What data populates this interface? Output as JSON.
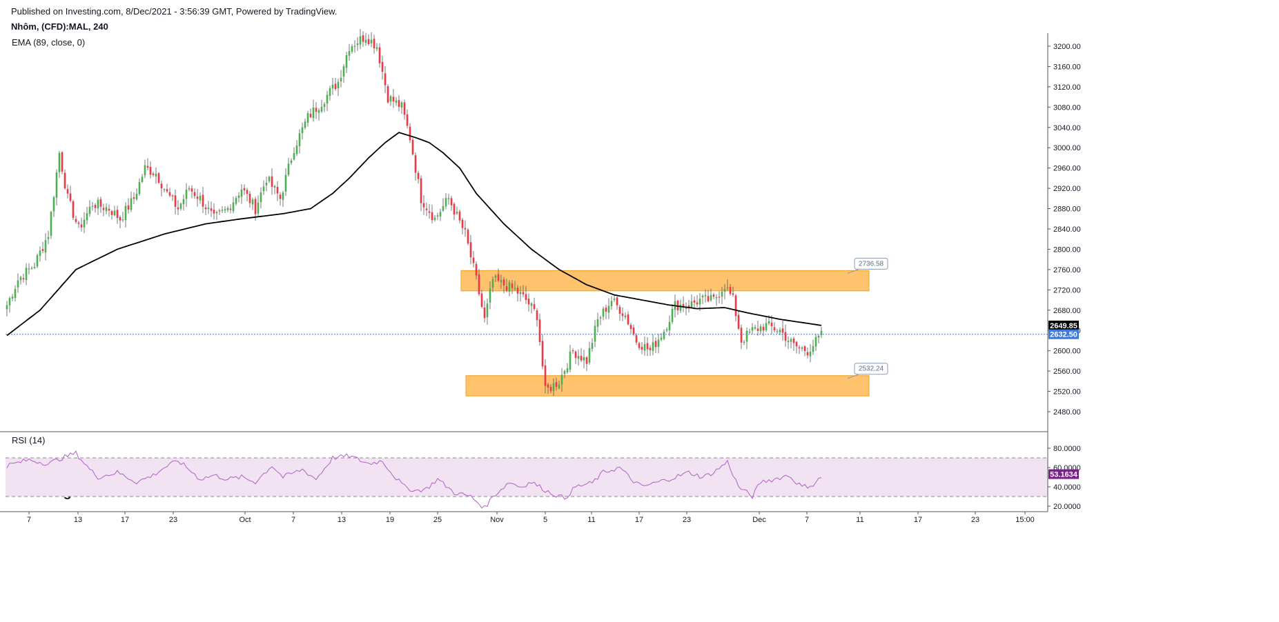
{
  "header": {
    "published": "Published on Investing.com, 8/Dec/2021 - 3:56:39 GMT, Powered by TradingView.",
    "title": "Nhôm, (CFD):MAL, 240"
  },
  "indicators": {
    "ema_label": "EMA (89, close, 0)",
    "rsi_label": "RSI (14)"
  },
  "logo": {
    "brand": "Investing",
    "suffix": ".com"
  },
  "colors": {
    "up": "#4caf50",
    "down": "#f23645",
    "ema": "#000000",
    "rsi": "#b05fc4",
    "zone": "#ffc36e",
    "last_price": "#3d7ad9",
    "rsi_tag": "#7b1f8a"
  },
  "chart_data": [
    {
      "type": "candlestick",
      "price_ticks": [
        "3200.00",
        "3160.00",
        "3120.00",
        "3080.00",
        "3040.00",
        "3000.00",
        "2960.00",
        "2920.00",
        "2880.00",
        "2840.00",
        "2800.00",
        "2760.00",
        "2720.00",
        "2680.00",
        "2640.00",
        "2600.00",
        "2560.00",
        "2520.00",
        "2480.00"
      ],
      "ylim": [
        2450,
        3230
      ],
      "x_ticks": [
        "7",
        "13",
        "17",
        "23",
        "Oct",
        "7",
        "13",
        "19",
        "25",
        "Nov",
        "5",
        "11",
        "17",
        "23",
        "Dec",
        "7",
        "11",
        "17",
        "23",
        "15:00"
      ],
      "ema_value": "2649.85",
      "last_price": "2632.50",
      "zones": [
        {
          "name": "resistance",
          "low": 2718,
          "high": 2758,
          "callout": "2736.58"
        },
        {
          "name": "support",
          "low": 2511,
          "high": 2551,
          "callout": "2532.24"
        }
      ],
      "close_anchors": [
        [
          0,
          2690
        ],
        [
          4,
          2740
        ],
        [
          10,
          2770
        ],
        [
          15,
          2830
        ],
        [
          19,
          2990
        ],
        [
          22,
          2900
        ],
        [
          26,
          2840
        ],
        [
          31,
          2890
        ],
        [
          37,
          2880
        ],
        [
          41,
          2860
        ],
        [
          46,
          2900
        ],
        [
          50,
          2960
        ],
        [
          54,
          2950
        ],
        [
          58,
          2910
        ],
        [
          62,
          2880
        ],
        [
          66,
          2920
        ],
        [
          70,
          2900
        ],
        [
          75,
          2860
        ],
        [
          80,
          2880
        ],
        [
          85,
          2920
        ],
        [
          90,
          2880
        ],
        [
          94,
          2940
        ],
        [
          99,
          2900
        ],
        [
          104,
          3000
        ],
        [
          109,
          3060
        ],
        [
          114,
          3090
        ],
        [
          120,
          3130
        ],
        [
          124,
          3200
        ],
        [
          130,
          3220
        ],
        [
          134,
          3200
        ],
        [
          138,
          3100
        ],
        [
          143,
          3080
        ],
        [
          146,
          3020
        ],
        [
          150,
          2900
        ],
        [
          155,
          2860
        ],
        [
          160,
          2900
        ],
        [
          166,
          2830
        ],
        [
          170,
          2740
        ],
        [
          173,
          2660
        ],
        [
          176,
          2740
        ],
        [
          180,
          2730
        ],
        [
          184,
          2720
        ],
        [
          188,
          2700
        ],
        [
          192,
          2670
        ],
        [
          195,
          2520
        ],
        [
          200,
          2540
        ],
        [
          205,
          2600
        ],
        [
          210,
          2580
        ],
        [
          214,
          2660
        ],
        [
          219,
          2700
        ],
        [
          224,
          2670
        ],
        [
          228,
          2620
        ],
        [
          233,
          2600
        ],
        [
          238,
          2640
        ],
        [
          242,
          2690
        ],
        [
          247,
          2690
        ],
        [
          251,
          2700
        ],
        [
          256,
          2700
        ],
        [
          260,
          2730
        ],
        [
          263,
          2700
        ],
        [
          266,
          2620
        ],
        [
          270,
          2640
        ],
        [
          275,
          2650
        ],
        [
          280,
          2640
        ],
        [
          285,
          2610
        ],
        [
          290,
          2600
        ],
        [
          295,
          2630
        ]
      ],
      "ema_anchors": [
        [
          0,
          2630
        ],
        [
          12,
          2680
        ],
        [
          25,
          2760
        ],
        [
          40,
          2800
        ],
        [
          57,
          2830
        ],
        [
          72,
          2850
        ],
        [
          85,
          2860
        ],
        [
          100,
          2870
        ],
        [
          110,
          2880
        ],
        [
          118,
          2910
        ],
        [
          124,
          2940
        ],
        [
          131,
          2980
        ],
        [
          137,
          3010
        ],
        [
          142,
          3030
        ],
        [
          148,
          3020
        ],
        [
          153,
          3010
        ],
        [
          158,
          2990
        ],
        [
          164,
          2960
        ],
        [
          170,
          2910
        ],
        [
          180,
          2850
        ],
        [
          190,
          2800
        ],
        [
          200,
          2760
        ],
        [
          210,
          2730
        ],
        [
          220,
          2710
        ],
        [
          230,
          2700
        ],
        [
          240,
          2690
        ],
        [
          250,
          2683
        ],
        [
          260,
          2685
        ],
        [
          268,
          2675
        ],
        [
          280,
          2662
        ],
        [
          295,
          2650
        ]
      ],
      "total_bars": 296
    },
    {
      "type": "line",
      "name": "RSI (14)",
      "ticks": [
        "80.0000",
        "60.0000",
        "40.0000",
        "20.0000"
      ],
      "ylim": [
        15,
        90
      ],
      "bands": [
        70,
        30
      ],
      "current": "53.1634",
      "anchors": [
        [
          0,
          62
        ],
        [
          8,
          68
        ],
        [
          15,
          64
        ],
        [
          20,
          70
        ],
        [
          25,
          75
        ],
        [
          30,
          58
        ],
        [
          33,
          50
        ],
        [
          40,
          55
        ],
        [
          47,
          45
        ],
        [
          53,
          52
        ],
        [
          57,
          60
        ],
        [
          62,
          67
        ],
        [
          66,
          58
        ],
        [
          70,
          48
        ],
        [
          75,
          52
        ],
        [
          80,
          48
        ],
        [
          85,
          50
        ],
        [
          90,
          45
        ],
        [
          96,
          62
        ],
        [
          100,
          50
        ],
        [
          107,
          58
        ],
        [
          112,
          48
        ],
        [
          118,
          70
        ],
        [
          124,
          72
        ],
        [
          131,
          64
        ],
        [
          136,
          67
        ],
        [
          140,
          52
        ],
        [
          144,
          40
        ],
        [
          148,
          36
        ],
        [
          152,
          38
        ],
        [
          156,
          48
        ],
        [
          162,
          34
        ],
        [
          168,
          30
        ],
        [
          173,
          18
        ],
        [
          176,
          30
        ],
        [
          182,
          45
        ],
        [
          186,
          40
        ],
        [
          190,
          45
        ],
        [
          196,
          35
        ],
        [
          202,
          28
        ],
        [
          206,
          40
        ],
        [
          212,
          44
        ],
        [
          216,
          55
        ],
        [
          222,
          60
        ],
        [
          226,
          48
        ],
        [
          230,
          40
        ],
        [
          236,
          45
        ],
        [
          242,
          50
        ],
        [
          247,
          55
        ],
        [
          252,
          50
        ],
        [
          256,
          55
        ],
        [
          261,
          66
        ],
        [
          265,
          40
        ],
        [
          270,
          30
        ],
        [
          273,
          45
        ],
        [
          278,
          48
        ],
        [
          283,
          52
        ],
        [
          288,
          40
        ],
        [
          292,
          42
        ],
        [
          296,
          53
        ]
      ]
    }
  ]
}
